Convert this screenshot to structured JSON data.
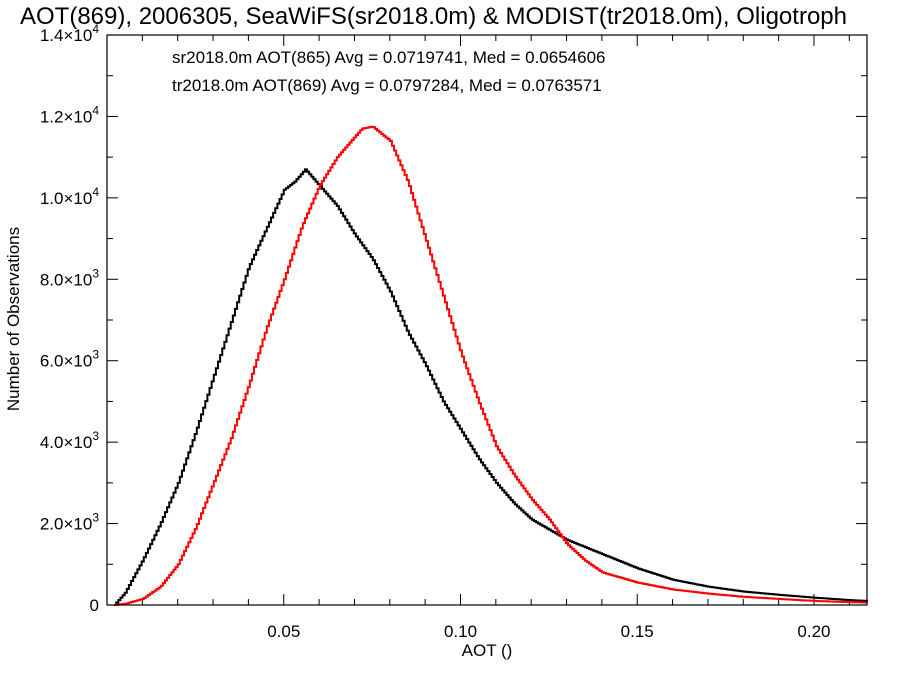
{
  "chart_data": {
    "type": "line",
    "title": "AOT(869), 2006305, SeaWiFS(sr2018.0m) & MODIST(tr2018.0m), Oligotroph",
    "xlabel": "AOT ()",
    "ylabel": "Number of Observations",
    "xlim": [
      0.0,
      0.215
    ],
    "ylim": [
      0,
      14000
    ],
    "xticks": [
      {
        "value": 0.05,
        "label": "0.05"
      },
      {
        "value": 0.1,
        "label": "0.10"
      },
      {
        "value": 0.15,
        "label": "0.15"
      },
      {
        "value": 0.2,
        "label": "0.20"
      }
    ],
    "yticks": [
      {
        "value": 0,
        "mant": "0",
        "exp": ""
      },
      {
        "value": 2000,
        "mant": "2.0×10",
        "exp": "3"
      },
      {
        "value": 4000,
        "mant": "4.0×10",
        "exp": "3"
      },
      {
        "value": 6000,
        "mant": "6.0×10",
        "exp": "3"
      },
      {
        "value": 8000,
        "mant": "8.0×10",
        "exp": "3"
      },
      {
        "value": 10000,
        "mant": "1.0×10",
        "exp": "4"
      },
      {
        "value": 12000,
        "mant": "1.2×10",
        "exp": "4"
      },
      {
        "value": 14000,
        "mant": "1.4×10",
        "exp": "4"
      }
    ],
    "annotations": [
      {
        "text": "sr2018.0m AOT(865) Avg = 0.0719741, Med = 0.0654606",
        "color": "#000000"
      },
      {
        "text": "tr2018.0m AOT(869) Avg = 0.0797284, Med = 0.0763571",
        "color": "#ff0000"
      }
    ],
    "series": [
      {
        "color": "#000000",
        "x": [
          0.002,
          0.005,
          0.01,
          0.015,
          0.02,
          0.025,
          0.03,
          0.035,
          0.04,
          0.045,
          0.05,
          0.053,
          0.056,
          0.06,
          0.065,
          0.07,
          0.075,
          0.08,
          0.085,
          0.09,
          0.095,
          0.1,
          0.105,
          0.11,
          0.115,
          0.12,
          0.125,
          0.13,
          0.14,
          0.15,
          0.16,
          0.17,
          0.18,
          0.19,
          0.2,
          0.21,
          0.215
        ],
        "y": [
          0,
          300,
          1100,
          2000,
          3000,
          4250,
          5600,
          6950,
          8300,
          9250,
          10200,
          10400,
          10700,
          10300,
          9800,
          9100,
          8500,
          7700,
          6700,
          5900,
          5000,
          4300,
          3600,
          3000,
          2500,
          2100,
          1850,
          1600,
          1250,
          900,
          620,
          450,
          330,
          250,
          180,
          120,
          100
        ]
      },
      {
        "color": "#ff0000",
        "x": [
          0.002,
          0.005,
          0.01,
          0.015,
          0.02,
          0.025,
          0.03,
          0.035,
          0.04,
          0.045,
          0.05,
          0.055,
          0.06,
          0.065,
          0.07,
          0.072,
          0.075,
          0.08,
          0.085,
          0.09,
          0.095,
          0.1,
          0.105,
          0.11,
          0.115,
          0.12,
          0.125,
          0.13,
          0.135,
          0.14,
          0.15,
          0.16,
          0.17,
          0.18,
          0.19,
          0.2,
          0.21,
          0.215
        ],
        "y": [
          0,
          30,
          150,
          450,
          1000,
          1900,
          3000,
          4100,
          5400,
          6800,
          8000,
          9300,
          10300,
          11000,
          11500,
          11700,
          11750,
          11400,
          10400,
          9000,
          7600,
          6200,
          5000,
          3900,
          3200,
          2600,
          2100,
          1500,
          1100,
          800,
          550,
          380,
          280,
          200,
          150,
          100,
          70,
          60
        ]
      }
    ]
  }
}
